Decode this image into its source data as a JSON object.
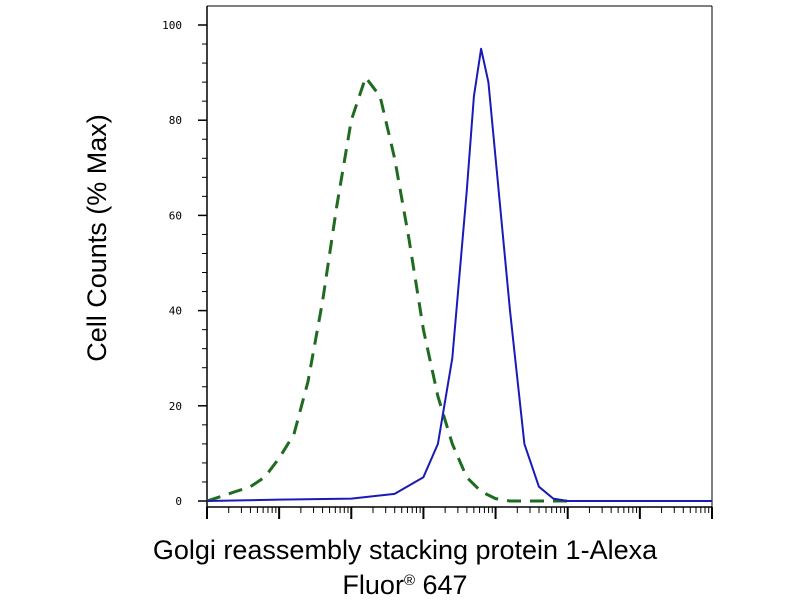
{
  "chart_data": {
    "type": "line",
    "title": "",
    "ylabel": "Cell Counts (% Max)",
    "xlabel": {
      "line1": "Golgi reassembly stacking protein 1-Alexa",
      "line2_main": "Fluor",
      "line2_sup": "®",
      "line2_end": " 647"
    },
    "x_scale": "log",
    "xlim": [
      1,
      10000000
    ],
    "ylim": [
      0,
      100
    ],
    "y_ticks": [
      0,
      20,
      40,
      60,
      80,
      100
    ],
    "y_tick_labels": [
      "0",
      "20",
      "40",
      "60",
      "80",
      "100"
    ],
    "grid": false,
    "legend": "none",
    "series": [
      {
        "color": "#1f6b1f",
        "dash": "dashed",
        "x": [
          1,
          1.6,
          2.5,
          4,
          6.3,
          10,
          16,
          25,
          40,
          63,
          100,
          158,
          251,
          398,
          631,
          1000,
          1585,
          2512,
          3981,
          6310,
          10000,
          15849,
          25119,
          39811,
          63096,
          100000
        ],
        "y": [
          0,
          1,
          2,
          3,
          5,
          9,
          14,
          25,
          42,
          62,
          80,
          89,
          85,
          72,
          55,
          36,
          22,
          12,
          5,
          2,
          0.5,
          0,
          0,
          0,
          0,
          0
        ]
      },
      {
        "color": "#1a1ab8",
        "dash": "solid",
        "x": [
          1,
          10,
          100,
          398,
          1000,
          1585,
          2512,
          3981,
          5012,
          6310,
          7943,
          10000,
          15849,
          25119,
          39811,
          63096,
          100000,
          158489,
          1000000,
          10000000
        ],
        "y": [
          0,
          0.3,
          0.5,
          1.5,
          5,
          12,
          30,
          65,
          85,
          95,
          88,
          72,
          40,
          12,
          3,
          0.5,
          0,
          0,
          0,
          0
        ]
      }
    ]
  }
}
